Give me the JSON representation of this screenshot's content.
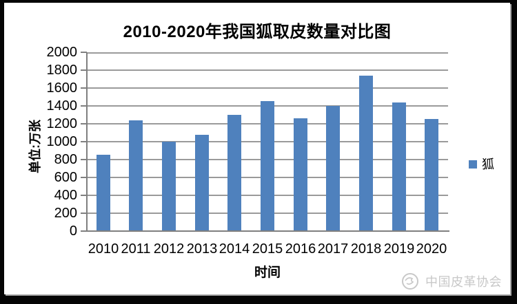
{
  "title": "2010-2020年我国狐取皮数量对比图",
  "chart_data": {
    "type": "bar",
    "title": "2010-2020年我国狐取皮数量对比图",
    "categories": [
      "2010",
      "2011",
      "2012",
      "2013",
      "2014",
      "2015",
      "2016",
      "2017",
      "2018",
      "2019",
      "2020"
    ],
    "series": [
      {
        "name": "狐",
        "values": [
          850,
          1240,
          1000,
          1080,
          1300,
          1450,
          1260,
          1400,
          1740,
          1440,
          1250
        ]
      }
    ],
    "xlabel": "时间",
    "ylabel": "单位:万张",
    "ylim": [
      0,
      2000
    ],
    "ytick_step": 200,
    "yticks": [
      0,
      200,
      400,
      600,
      800,
      1000,
      1200,
      1400,
      1600,
      1800,
      2000
    ],
    "grid": true,
    "legend_position": "right",
    "bar_color": "#4F81BD",
    "gridline_color": "#9a9a9a",
    "axis_color": "#7f7f7f"
  },
  "legend": {
    "label": "狐",
    "swatch_color": "#4F81BD"
  },
  "watermark": {
    "logo": "china-leather-association-logo",
    "text": "中国皮革协会",
    "color": "#c8c8c8"
  },
  "frame": {
    "background": "#050505",
    "card_background": "#ffffff"
  }
}
